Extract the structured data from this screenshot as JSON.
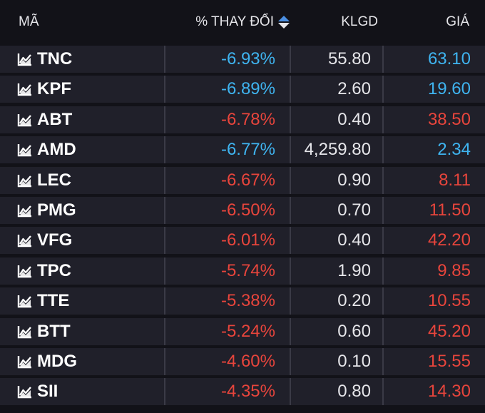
{
  "header": {
    "code": "MÃ",
    "change": "% THAY ĐỔI",
    "volume": "KLGD",
    "price": "GIÁ"
  },
  "colors": {
    "blue": "#3fb4f0",
    "red": "#e8453c",
    "white": "#e6e6ea"
  },
  "rows": [
    {
      "code": "TNC",
      "change": "-6.93%",
      "volume": "55.80",
      "price": "63.10",
      "change_color": "blue",
      "price_color": "blue"
    },
    {
      "code": "KPF",
      "change": "-6.89%",
      "volume": "2.60",
      "price": "19.60",
      "change_color": "blue",
      "price_color": "blue"
    },
    {
      "code": "ABT",
      "change": "-6.78%",
      "volume": "0.40",
      "price": "38.50",
      "change_color": "red",
      "price_color": "red"
    },
    {
      "code": "AMD",
      "change": "-6.77%",
      "volume": "4,259.80",
      "price": "2.34",
      "change_color": "blue",
      "price_color": "blue"
    },
    {
      "code": "LEC",
      "change": "-6.67%",
      "volume": "0.90",
      "price": "8.11",
      "change_color": "red",
      "price_color": "red"
    },
    {
      "code": "PMG",
      "change": "-6.50%",
      "volume": "0.70",
      "price": "11.50",
      "change_color": "red",
      "price_color": "red"
    },
    {
      "code": "VFG",
      "change": "-6.01%",
      "volume": "0.40",
      "price": "42.20",
      "change_color": "red",
      "price_color": "red"
    },
    {
      "code": "TPC",
      "change": "-5.74%",
      "volume": "1.90",
      "price": "9.85",
      "change_color": "red",
      "price_color": "red"
    },
    {
      "code": "TTE",
      "change": "-5.38%",
      "volume": "0.20",
      "price": "10.55",
      "change_color": "red",
      "price_color": "red"
    },
    {
      "code": "BTT",
      "change": "-5.24%",
      "volume": "0.60",
      "price": "45.20",
      "change_color": "red",
      "price_color": "red"
    },
    {
      "code": "MDG",
      "change": "-4.60%",
      "volume": "0.10",
      "price": "15.55",
      "change_color": "red",
      "price_color": "red"
    },
    {
      "code": "SII",
      "change": "-4.35%",
      "volume": "0.80",
      "price": "14.30",
      "change_color": "red",
      "price_color": "red"
    }
  ]
}
